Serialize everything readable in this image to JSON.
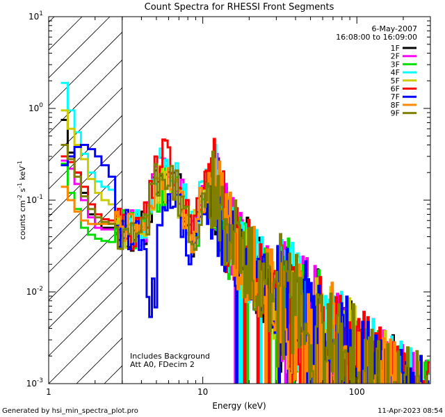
{
  "chart_data": {
    "type": "line",
    "title": "Count Spectra for RHESSI Front Segments",
    "xlabel": "Energy (keV)",
    "ylabel_parts": [
      "counts cm",
      "-2",
      " s",
      "-1",
      " keV",
      "-1"
    ],
    "xscale": "log",
    "yscale": "log",
    "xlim": [
      1,
      300
    ],
    "ylim": [
      0.001,
      10
    ],
    "x_ticks": [
      {
        "v": 1,
        "label": "1"
      },
      {
        "v": 10,
        "label": "10"
      },
      {
        "v": 100,
        "label": "100"
      }
    ],
    "y_ticks": [
      {
        "v": 10,
        "base": "10",
        "exp": "1"
      },
      {
        "v": 1,
        "base": "10",
        "exp": "0"
      },
      {
        "v": 0.1,
        "base": "10",
        "exp": "-1"
      },
      {
        "v": 0.01,
        "base": "10",
        "exp": "-2"
      },
      {
        "v": 0.001,
        "base": "10",
        "exp": "-3"
      }
    ],
    "shaded_region": {
      "x_start": 1,
      "x_end": 3,
      "style": "hatched"
    },
    "legend_header": [
      "6-May-2007",
      "16:08:00 to 16:09:00"
    ],
    "annotations": [
      "Includes Background",
      "Att A0, FDecim 2"
    ],
    "series": [
      {
        "name": "1F",
        "color": "#000000",
        "low": [
          0.75,
          0.33,
          0.2,
          0.12,
          0.07,
          0.055,
          0.05,
          0.05
        ],
        "mid_scale": 0.65,
        "phase": 1.3
      },
      {
        "name": "2F",
        "color": "#ff00ff",
        "low": [
          0.27,
          0.22,
          0.15,
          0.1,
          0.065,
          0.05,
          0.048,
          0.048
        ],
        "mid_scale": 0.85,
        "phase": 2.1
      },
      {
        "name": "3F",
        "color": "#00e000",
        "low": [
          0.25,
          0.12,
          0.08,
          0.05,
          0.042,
          0.038,
          0.036,
          0.035
        ],
        "mid_scale": 0.55,
        "phase": 0.7
      },
      {
        "name": "4F",
        "color": "#00ffff",
        "low": [
          1.9,
          0.95,
          0.55,
          0.32,
          0.2,
          0.16,
          0.14,
          0.13
        ],
        "mid_scale": 0.95,
        "phase": 3.4
      },
      {
        "name": "5F",
        "color": "#cccc00",
        "low": [
          0.95,
          0.6,
          0.4,
          0.28,
          0.17,
          0.12,
          0.1,
          0.09
        ],
        "mid_scale": 0.6,
        "phase": 4.2
      },
      {
        "name": "6F",
        "color": "#ff0000",
        "low": [
          0.3,
          0.26,
          0.2,
          0.14,
          0.09,
          0.07,
          0.062,
          0.06
        ],
        "mid_scale": 1.15,
        "phase": 5.0
      },
      {
        "name": "7F",
        "color": "#0000ff",
        "low": [
          0.24,
          0.3,
          0.38,
          0.4,
          0.36,
          0.3,
          0.24,
          0.18
        ],
        "mid_scale": 0.3,
        "phase": 6.3
      },
      {
        "name": "8F",
        "color": "#ff8800",
        "low": [
          0.14,
          0.1,
          0.075,
          0.06,
          0.055,
          0.055,
          0.055,
          0.056
        ],
        "mid_scale": 0.75,
        "phase": 7.1
      },
      {
        "name": "9F",
        "color": "#808000",
        "low": [
          0.4,
          0.28,
          0.18,
          0.11,
          0.08,
          0.065,
          0.058,
          0.055
        ],
        "mid_scale": 0.7,
        "phase": 8.8
      }
    ],
    "bins_keV": [
      1.2,
      1.33,
      1.47,
      1.62,
      1.8,
      2.0,
      2.2,
      2.45
    ],
    "peaks_keV": [
      {
        "e": 5.2,
        "v": 0.17
      },
      {
        "e": 6.5,
        "v": 0.14
      },
      {
        "e": 10.7,
        "v": 0.14
      }
    ]
  },
  "footer": {
    "left": "Generated by hsi_min_spectra_plot.pro",
    "right": "11-Apr-2023 08:54"
  }
}
